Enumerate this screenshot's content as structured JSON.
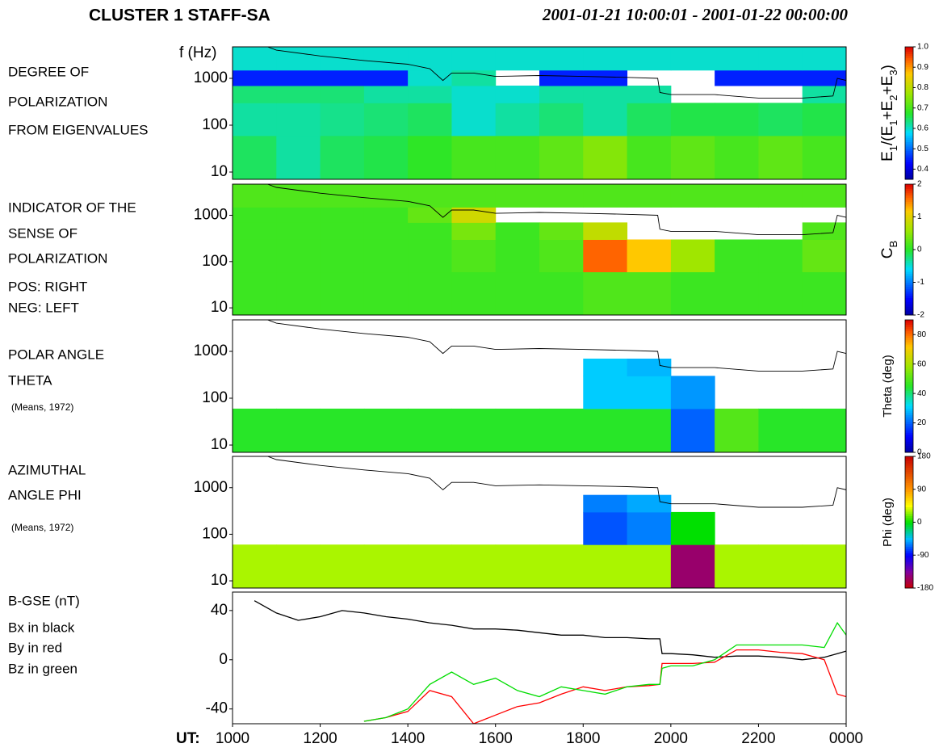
{
  "header": {
    "title": "CLUSTER 1 STAFF-SA",
    "time_range": "2001-01-21 10:00:01 - 2001-01-22 00:00:00"
  },
  "chart_data": [
    {
      "type": "heatmap",
      "notes": [
        "DEGREE OF",
        "POLARIZATION",
        "FROM EIGENVALUES"
      ],
      "ylabel": "f (Hz)",
      "yscale": "log",
      "xlim": [
        10,
        24
      ],
      "ylim": [
        7,
        4700
      ],
      "yticks": [
        10,
        100,
        1000
      ],
      "x_bins": [
        10,
        11,
        12,
        13,
        14,
        15,
        16,
        17,
        18,
        19,
        20,
        21,
        22,
        23,
        24
      ],
      "y_bins": [
        7,
        60,
        300,
        700,
        1500,
        4700
      ],
      "z": [
        [
          0.65,
          0.62,
          0.65,
          0.66,
          0.68,
          0.7,
          0.7,
          0.72,
          0.75,
          0.7,
          0.72,
          0.7,
          0.72,
          0.7
        ],
        [
          0.62,
          0.62,
          0.63,
          0.64,
          0.65,
          0.6,
          0.62,
          0.64,
          0.62,
          0.65,
          0.66,
          0.66,
          0.65,
          0.66
        ],
        [
          0.64,
          0.64,
          0.64,
          0.62,
          0.62,
          0.6,
          0.6,
          0.62,
          0.62,
          0.62,
          null,
          null,
          null,
          0.62
        ],
        [
          0.45,
          0.45,
          0.45,
          0.45,
          0.6,
          0.62,
          null,
          0.45,
          0.45,
          null,
          null,
          0.45,
          0.45,
          0.45
        ],
        [
          0.6,
          0.6,
          0.6,
          0.6,
          0.6,
          0.6,
          0.6,
          0.6,
          0.6,
          0.6,
          0.6,
          0.6,
          0.6,
          0.6
        ]
      ],
      "colormap": "jet",
      "zlim": [
        0.35,
        1.0
      ],
      "zticks": [
        0.4,
        0.5,
        0.6,
        0.7,
        0.8,
        0.9,
        {
          "value": 1,
          "label": "1.0"
        }
      ],
      "colorbar_label_parts": [
        "E",
        "1",
        "/(E",
        "1",
        "+E",
        "2",
        "+E",
        "3",
        ")"
      ],
      "x": [
        10.8,
        11,
        12,
        13,
        14,
        14.5,
        14.8,
        15,
        15.5,
        16,
        17,
        18,
        19,
        19.7,
        19.75,
        20,
        21,
        22,
        23,
        23.7,
        23.8,
        24
      ],
      "series": [
        {
          "color": "#000000",
          "values": [
            4700,
            4000,
            3000,
            2400,
            2000,
            1600,
            900,
            1300,
            1300,
            1100,
            1150,
            1100,
            1050,
            1000,
            500,
            450,
            450,
            380,
            380,
            420,
            1000,
            900
          ]
        }
      ]
    },
    {
      "type": "heatmap",
      "notes": [
        "INDICATOR OF THE",
        "SENSE OF",
        "POLARIZATION",
        "POS: RIGHT",
        "NEG: LEFT"
      ],
      "yscale": "log",
      "xlim": [
        10,
        24
      ],
      "ylim": [
        7,
        4700
      ],
      "yticks": [
        10,
        100,
        1000
      ],
      "x_bins": [
        10,
        11,
        12,
        13,
        14,
        15,
        16,
        17,
        18,
        19,
        20,
        21,
        22,
        23,
        24
      ],
      "y_bins": [
        7,
        60,
        300,
        700,
        1500,
        4700
      ],
      "z": [
        [
          0.1,
          0.1,
          0.1,
          0.1,
          0.1,
          0.1,
          0.1,
          0.1,
          0.2,
          0.2,
          0.1,
          0.1,
          0.1,
          0.1
        ],
        [
          0.1,
          0.1,
          0.1,
          0.1,
          0.1,
          0.2,
          0.1,
          0.2,
          1.6,
          1.2,
          0.6,
          0.1,
          0.1,
          0.3
        ],
        [
          0.1,
          0.1,
          0.1,
          0.1,
          0.1,
          0.4,
          0.1,
          0.3,
          0.8,
          null,
          null,
          null,
          null,
          0.2
        ],
        [
          0.1,
          0.1,
          0.1,
          0.1,
          0.3,
          0.9,
          null,
          null,
          null,
          null,
          null,
          null,
          null,
          null
        ],
        [
          0.2,
          0.2,
          0.2,
          0.2,
          0.2,
          0.2,
          0.2,
          0.2,
          0.2,
          0.2,
          0.2,
          0.2,
          0.2,
          0.2
        ]
      ],
      "colormap": "jet",
      "zlim": [
        -2,
        2
      ],
      "zticks": [
        -2,
        -1,
        0,
        1,
        2
      ],
      "colorbar_label_parts": [
        "C",
        "B"
      ],
      "x": [
        10.8,
        11,
        12,
        13,
        14,
        14.5,
        14.8,
        15,
        15.5,
        16,
        17,
        18,
        19,
        19.7,
        19.75,
        20,
        21,
        22,
        23,
        23.7,
        23.8,
        24
      ],
      "series": [
        {
          "color": "#000000",
          "values": [
            4700,
            4000,
            3000,
            2400,
            2000,
            1600,
            900,
            1300,
            1300,
            1100,
            1150,
            1100,
            1050,
            1000,
            500,
            450,
            450,
            380,
            380,
            420,
            1000,
            900
          ]
        }
      ]
    },
    {
      "type": "heatmap",
      "notes": [
        "POLAR ANGLE",
        "THETA"
      ],
      "reference": "(Means, 1972)",
      "yscale": "log",
      "xlim": [
        10,
        24
      ],
      "ylim": [
        7,
        4700
      ],
      "yticks": [
        10,
        100,
        1000
      ],
      "x_bins": [
        10,
        11,
        12,
        13,
        14,
        15,
        16,
        17,
        18,
        19,
        20,
        21,
        22,
        23,
        24
      ],
      "y_bins": [
        7,
        60,
        300,
        700,
        1500,
        4700
      ],
      "z": [
        [
          45,
          45,
          45,
          45,
          45,
          45,
          45,
          45,
          45,
          45,
          20,
          50,
          45,
          45
        ],
        [
          null,
          null,
          null,
          null,
          null,
          null,
          null,
          null,
          30,
          30,
          25,
          null,
          null,
          null
        ],
        [
          null,
          null,
          null,
          null,
          null,
          null,
          null,
          null,
          30,
          28,
          null,
          null,
          null,
          null
        ],
        [
          null,
          null,
          null,
          null,
          null,
          null,
          null,
          null,
          null,
          null,
          null,
          null,
          null,
          null
        ],
        [
          null,
          null,
          null,
          null,
          null,
          null,
          null,
          null,
          null,
          null,
          null,
          null,
          null,
          null
        ]
      ],
      "colormap": "jet",
      "zlim": [
        0,
        90
      ],
      "zticks": [
        0,
        20,
        40,
        60,
        80
      ],
      "colorbar_label_parts": [
        "Theta (deg)"
      ],
      "x": [
        10.8,
        11,
        12,
        13,
        14,
        14.5,
        14.8,
        15,
        15.5,
        16,
        17,
        18,
        19,
        19.7,
        19.75,
        20,
        21,
        22,
        23,
        23.7,
        23.8,
        24
      ],
      "series": [
        {
          "color": "#000000",
          "values": [
            4700,
            4000,
            3000,
            2400,
            2000,
            1600,
            900,
            1300,
            1300,
            1100,
            1150,
            1100,
            1050,
            1000,
            500,
            450,
            450,
            380,
            380,
            420,
            1000,
            900
          ]
        }
      ]
    },
    {
      "type": "heatmap",
      "notes": [
        "AZIMUTHAL",
        "ANGLE PHI"
      ],
      "reference": "(Means, 1972)",
      "yscale": "log",
      "xlim": [
        10,
        24
      ],
      "ylim": [
        7,
        4700
      ],
      "yticks": [
        10,
        100,
        1000
      ],
      "x_bins": [
        10,
        11,
        12,
        13,
        14,
        15,
        16,
        17,
        18,
        19,
        20,
        21,
        22,
        23,
        24
      ],
      "y_bins": [
        7,
        60,
        300,
        700,
        1500,
        4700
      ],
      "z": [
        [
          30,
          30,
          30,
          30,
          30,
          30,
          30,
          30,
          30,
          30,
          -150,
          30,
          30,
          30
        ],
        [
          null,
          null,
          null,
          null,
          null,
          null,
          null,
          null,
          -70,
          -60,
          0,
          null,
          null,
          null
        ],
        [
          null,
          null,
          null,
          null,
          null,
          null,
          null,
          null,
          -60,
          -50,
          null,
          null,
          null,
          null
        ],
        [
          null,
          null,
          null,
          null,
          null,
          null,
          null,
          null,
          null,
          null,
          null,
          null,
          null,
          null
        ],
        [
          null,
          null,
          null,
          null,
          null,
          null,
          null,
          null,
          null,
          null,
          null,
          null,
          null,
          null
        ]
      ],
      "colormap": "cyclic",
      "zlim": [
        -180,
        180
      ],
      "zticks": [
        -180,
        -90,
        0,
        90,
        180
      ],
      "colorbar_label_parts": [
        "Phi (deg)"
      ],
      "x": [
        10.8,
        11,
        12,
        13,
        14,
        14.5,
        14.8,
        15,
        15.5,
        16,
        17,
        18,
        19,
        19.7,
        19.75,
        20,
        21,
        22,
        23,
        23.7,
        23.8,
        24
      ],
      "series": [
        {
          "color": "#000000",
          "values": [
            4700,
            4000,
            3000,
            2400,
            2000,
            1600,
            900,
            1300,
            1300,
            1100,
            1150,
            1100,
            1050,
            1000,
            500,
            450,
            450,
            380,
            380,
            420,
            1000,
            900
          ]
        }
      ]
    },
    {
      "type": "line",
      "notes": [
        "B-GSE    (nT)",
        "Bx in black",
        "By in red",
        "Bz in green"
      ],
      "xlabel": "UT:",
      "xlim": [
        10,
        24
      ],
      "xticks": [
        {
          "value": 10,
          "label": "1000"
        },
        {
          "value": 12,
          "label": "1200"
        },
        {
          "value": 14,
          "label": "1400"
        },
        {
          "value": 16,
          "label": "1600"
        },
        {
          "value": 18,
          "label": "1800"
        },
        {
          "value": 20,
          "label": "2000"
        },
        {
          "value": 22,
          "label": "2200"
        },
        {
          "value": 24,
          "label": "0000"
        }
      ],
      "ylim": [
        -52,
        55
      ],
      "yticks": [
        -40,
        0,
        40
      ],
      "x": [
        10.5,
        11,
        11.5,
        12,
        12.5,
        13,
        13.5,
        14,
        14.5,
        15,
        15.5,
        16,
        16.5,
        17,
        17.5,
        18,
        18.5,
        19,
        19.5,
        19.75,
        19.8,
        20,
        20.5,
        21,
        21.5,
        22,
        22.5,
        23,
        23.5,
        23.8,
        24
      ],
      "series": [
        {
          "color": "#000000",
          "values": [
            48,
            38,
            32,
            35,
            40,
            38,
            35,
            33,
            30,
            28,
            25,
            25,
            24,
            22,
            20,
            20,
            18,
            18,
            17,
            17,
            5,
            5,
            4,
            2,
            3,
            3,
            2,
            0,
            2,
            5,
            7
          ]
        },
        {
          "color": "#ff0000",
          "values": [
            null,
            null,
            null,
            null,
            null,
            -50,
            -47,
            -42,
            -25,
            -30,
            -52,
            -45,
            -38,
            -35,
            -28,
            -22,
            -25,
            -22,
            -21,
            -20,
            -3,
            -3,
            -3,
            -2,
            8,
            8,
            6,
            5,
            0,
            -28,
            -30
          ]
        },
        {
          "color": "#00dd00",
          "values": [
            null,
            null,
            null,
            null,
            null,
            -50,
            -47,
            -40,
            -20,
            -10,
            -20,
            -15,
            -25,
            -30,
            -22,
            -25,
            -28,
            -22,
            -20,
            -20,
            -7,
            -5,
            -5,
            0,
            12,
            12,
            12,
            12,
            10,
            30,
            20
          ]
        }
      ]
    }
  ]
}
